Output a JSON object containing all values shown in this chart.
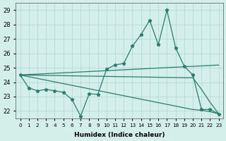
{
  "xlabel": "Humidex (Indice chaleur)",
  "x_values": [
    0,
    1,
    2,
    3,
    4,
    5,
    6,
    7,
    8,
    9,
    10,
    11,
    12,
    13,
    14,
    15,
    16,
    17,
    18,
    19,
    20,
    21,
    22,
    23
  ],
  "y_main": [
    24.5,
    23.6,
    23.4,
    23.5,
    23.4,
    23.3,
    22.8,
    21.65,
    23.2,
    23.15,
    24.9,
    25.2,
    25.3,
    26.5,
    27.3,
    28.3,
    26.6,
    29.0,
    26.4,
    25.1,
    24.5,
    22.1,
    22.1,
    21.8
  ],
  "y_smooth1": [
    24.5,
    24.53,
    24.56,
    24.59,
    24.62,
    24.65,
    24.68,
    24.71,
    24.74,
    24.77,
    24.8,
    24.83,
    24.86,
    24.89,
    24.92,
    24.95,
    24.98,
    25.01,
    25.04,
    25.07,
    25.1,
    25.13,
    25.16,
    25.19
  ],
  "y_smooth2": [
    24.5,
    24.49,
    24.48,
    24.47,
    24.46,
    24.45,
    24.44,
    24.43,
    24.42,
    24.41,
    24.4,
    24.39,
    24.38,
    24.37,
    24.36,
    24.35,
    24.34,
    24.33,
    24.32,
    24.31,
    24.3,
    23.5,
    22.6,
    21.8
  ],
  "y_smooth3": [
    24.5,
    24.38,
    24.26,
    24.14,
    24.02,
    23.9,
    23.78,
    23.66,
    23.54,
    23.42,
    23.3,
    23.18,
    23.06,
    22.94,
    22.82,
    22.7,
    22.58,
    22.46,
    22.34,
    22.22,
    22.1,
    22.05,
    21.95,
    21.8
  ],
  "ylim": [
    21.5,
    29.5
  ],
  "yticks": [
    22,
    23,
    24,
    25,
    26,
    27,
    28,
    29
  ],
  "color": "#2a7d6e",
  "bg_color": "#d4eeea",
  "grid_color": "#aed8d3"
}
